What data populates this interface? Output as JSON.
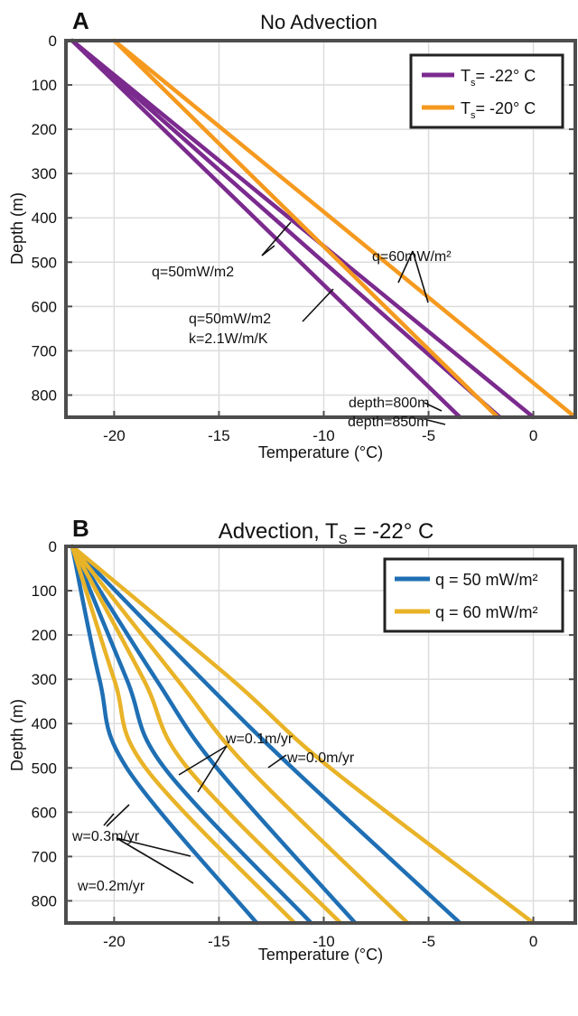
{
  "panels": [
    {
      "letter": "A",
      "title": "No Advection",
      "title_sub": "",
      "title_after": "",
      "xlabel": "Temperature",
      "xlabel_unit": "(°C)",
      "ylabel": "Depth (m)",
      "legend": [
        {
          "label_pre": "T",
          "label_sub": "s",
          "label_post": "= -22° C",
          "color": "#7b2a8e"
        },
        {
          "label_pre": "T",
          "label_sub": "s",
          "label_post": "= -20° C",
          "color": "#f59a1f"
        }
      ],
      "annotations": [
        {
          "text": "q=50mW/m2"
        },
        {
          "text": "q=50mW/m2"
        },
        {
          "text": "k=2.1W/m/K"
        },
        {
          "text": "q=60mW/m²"
        },
        {
          "text": "depth=800m"
        },
        {
          "text": "depth=850m"
        }
      ]
    },
    {
      "letter": "B",
      "title": "Advection, T",
      "title_sub": "S",
      "title_after": " = -22° C",
      "xlabel": "Temperature",
      "xlabel_unit": "(°C)",
      "ylabel": "Depth (m)",
      "legend": [
        {
          "label_pre": "q = 50 mW/m²",
          "label_sub": "",
          "label_post": "",
          "color": "#1f6fb4"
        },
        {
          "label_pre": "q = 60 mW/m²",
          "label_sub": "",
          "label_post": "",
          "color": "#e9b328"
        }
      ],
      "annotations": [
        {
          "text": "w=0.1m/yr"
        },
        {
          "text": "w=0.0m/yr"
        },
        {
          "text": "w=0.3m/yr"
        },
        {
          "text": "w=0.2m/yr"
        }
      ]
    }
  ],
  "chart_data": [
    {
      "type": "line",
      "title": "No Advection",
      "xlabel": "Temperature (°C)",
      "ylabel": "Depth (m)",
      "xlim": [
        -22.3,
        2
      ],
      "ylim": [
        0,
        850
      ],
      "y_reversed": true,
      "xticks": [
        -20,
        -15,
        -10,
        -5,
        0
      ],
      "yticks": [
        0,
        100,
        200,
        300,
        400,
        500,
        600,
        700,
        800
      ],
      "grid": true,
      "legend_position": "top-right",
      "series": [
        {
          "name": "Ts= -22° C",
          "color": "#7b2a8e",
          "x": [
            -22,
            -3.5
          ],
          "y": [
            0,
            850
          ]
        },
        {
          "name": "Ts= -22° C",
          "color": "#7b2a8e",
          "x": [
            -22,
            -1.6
          ],
          "y": [
            0,
            850
          ]
        },
        {
          "name": "Ts= -22° C",
          "color": "#7b2a8e",
          "x": [
            -22,
            0
          ],
          "y": [
            0,
            850
          ]
        },
        {
          "name": "Ts= -20° C",
          "color": "#f59a1f",
          "x": [
            -20,
            -1.7
          ],
          "y": [
            0,
            850
          ]
        },
        {
          "name": "Ts= -20° C",
          "color": "#f59a1f",
          "x": [
            -20,
            2
          ],
          "y": [
            0,
            850
          ]
        }
      ]
    },
    {
      "type": "line",
      "title": "Advection, TS = -22° C",
      "xlabel": "Temperature (°C)",
      "ylabel": "Depth (m)",
      "xlim": [
        -22.3,
        2
      ],
      "ylim": [
        0,
        850
      ],
      "y_reversed": true,
      "xticks": [
        -20,
        -15,
        -10,
        -5,
        0
      ],
      "yticks": [
        0,
        100,
        200,
        300,
        400,
        500,
        600,
        700,
        800
      ],
      "grid": true,
      "legend_position": "top-right",
      "series": [
        {
          "name": "q = 50 mW/m²",
          "color": "#1f6fb4",
          "x": [
            -22,
            -15.8,
            -11.5,
            -3.5
          ],
          "y": [
            0,
            300,
            500,
            850
          ]
        },
        {
          "name": "q = 50 mW/m²",
          "color": "#1f6fb4",
          "x": [
            -22,
            -18.0,
            -15.1,
            -8.5
          ],
          "y": [
            0,
            300,
            500,
            850
          ]
        },
        {
          "name": "q = 50 mW/m²",
          "color": "#1f6fb4",
          "x": [
            -22,
            -19.4,
            -17.6,
            -10.6
          ],
          "y": [
            0,
            300,
            500,
            850
          ]
        },
        {
          "name": "q = 50 mW/m²",
          "color": "#1f6fb4",
          "x": [
            -22,
            -20.7,
            -19.4,
            -13.2
          ],
          "y": [
            0,
            300,
            500,
            850
          ]
        },
        {
          "name": "q = 60 mW/m²",
          "color": "#e9b328",
          "x": [
            -22,
            -14.4,
            -9.7,
            0
          ],
          "y": [
            0,
            300,
            500,
            850
          ]
        },
        {
          "name": "q = 60 mW/m²",
          "color": "#e9b328",
          "x": [
            -22,
            -17.0,
            -13.6,
            -6.0
          ],
          "y": [
            0,
            300,
            500,
            850
          ]
        },
        {
          "name": "q = 60 mW/m²",
          "color": "#e9b328",
          "x": [
            -22,
            -18.6,
            -16.5,
            -9.2
          ],
          "y": [
            0,
            300,
            500,
            850
          ]
        },
        {
          "name": "q = 60 mW/m²",
          "color": "#e9b328",
          "x": [
            -22,
            -20.0,
            -18.5,
            -11.4
          ],
          "y": [
            0,
            300,
            500,
            850
          ]
        }
      ]
    }
  ]
}
